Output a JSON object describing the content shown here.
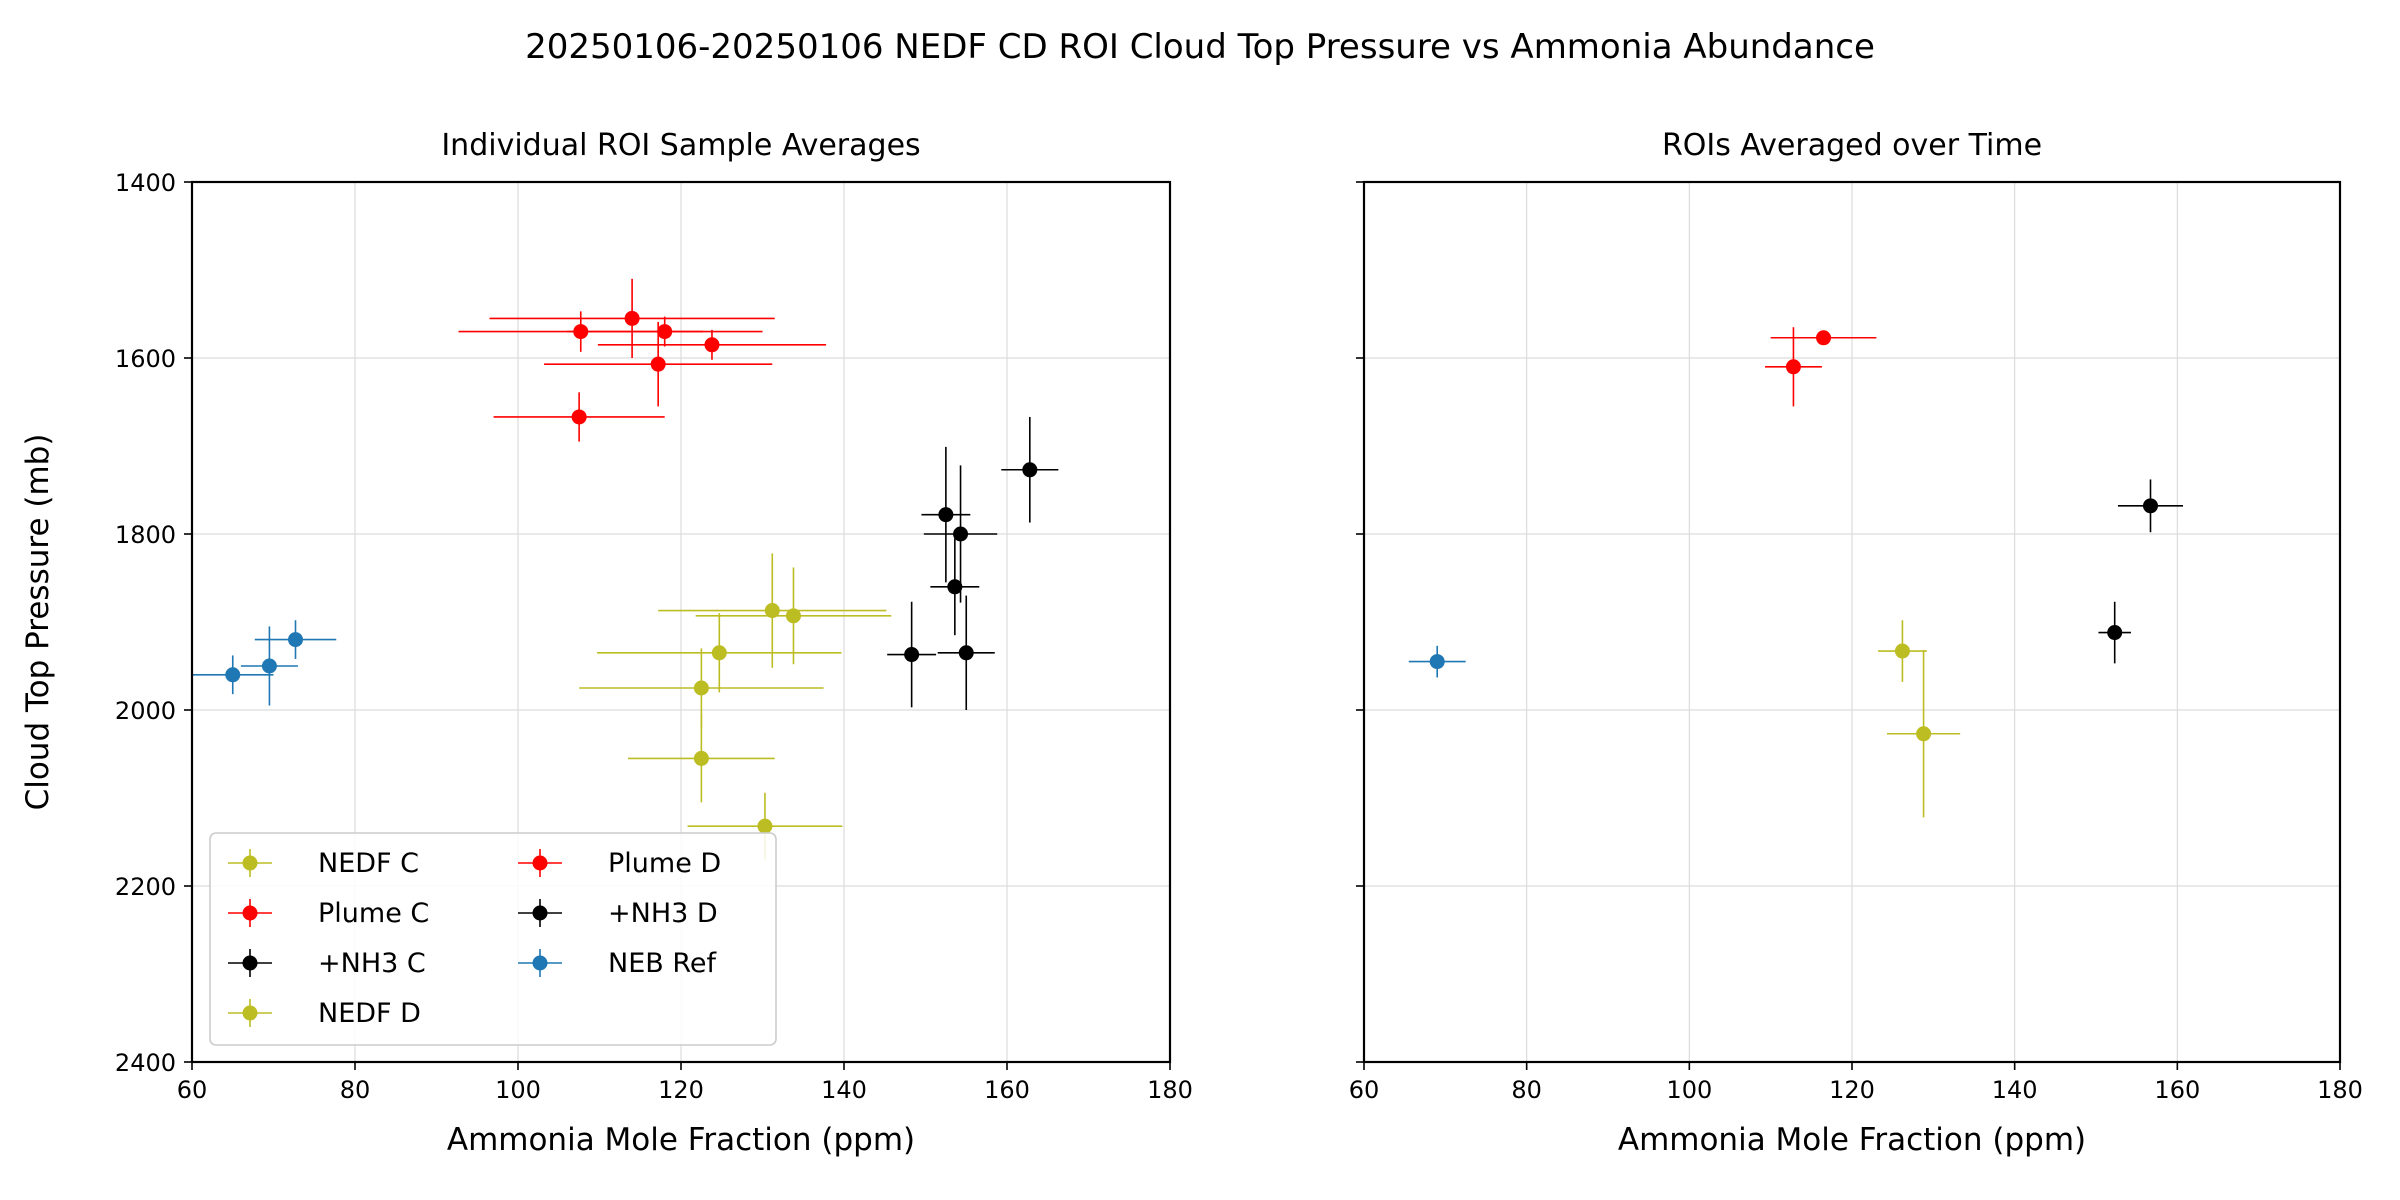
{
  "figure": {
    "title": "20250106-20250106 NEDF CD ROI Cloud Top Pressure vs Ammonia Abundance"
  },
  "chart_data": [
    {
      "type": "scatter",
      "title": "Individual ROI Sample Averages",
      "xlabel": "Ammonia Mole Fraction (ppm)",
      "ylabel": "Cloud Top Pressure (mb)",
      "xlim": [
        60,
        180
      ],
      "ylim": [
        2400,
        1400
      ],
      "y_inverted": true,
      "xticks": [
        60,
        80,
        100,
        120,
        140,
        160,
        180
      ],
      "yticks": [
        1400,
        1600,
        1800,
        2000,
        2200,
        2400
      ],
      "grid": true,
      "legend": {
        "placement": "lower-left",
        "columns": 2
      },
      "series": [
        {
          "name": "NEDF C",
          "color": "#bcbd22",
          "points": [
            {
              "x": 122.5,
              "y": 1975,
              "xerr": 15,
              "yerr": 45
            },
            {
              "x": 124.7,
              "y": 1935,
              "xerr": 15,
              "yerr": 45
            },
            {
              "x": 122.5,
              "y": 2055,
              "xerr": 9,
              "yerr": 50
            },
            {
              "x": 131.2,
              "y": 1887,
              "xerr": 14,
              "yerr": 65
            }
          ]
        },
        {
          "name": "Plume C",
          "color": "#ff0000",
          "points": [
            {
              "x": 107.7,
              "y": 1570,
              "xerr": 15,
              "yerr": 23
            },
            {
              "x": 114.0,
              "y": 1555,
              "xerr": 17.5,
              "yerr": 45
            },
            {
              "x": 107.5,
              "y": 1667,
              "xerr": 10.5,
              "yerr": 28
            }
          ]
        },
        {
          "name": "+NH3 C",
          "color": "#000000",
          "points": [
            {
              "x": 152.5,
              "y": 1778,
              "xerr": 3,
              "yerr": 77
            },
            {
              "x": 162.8,
              "y": 1727,
              "xerr": 3.5,
              "yerr": 60
            },
            {
              "x": 148.3,
              "y": 1937,
              "xerr": 3,
              "yerr": 60
            }
          ]
        },
        {
          "name": "NEDF D",
          "color": "#bcbd22",
          "points": [
            {
              "x": 133.8,
              "y": 1893,
              "xerr": 12,
              "yerr": 55
            },
            {
              "x": 130.3,
              "y": 2132,
              "xerr": 9.5,
              "yerr": 38
            }
          ]
        },
        {
          "name": "Plume D",
          "color": "#ff0000",
          "points": [
            {
              "x": 118.0,
              "y": 1570,
              "xerr": 12,
              "yerr": 17
            },
            {
              "x": 117.2,
              "y": 1607,
              "xerr": 14,
              "yerr": 48
            },
            {
              "x": 123.8,
              "y": 1585,
              "xerr": 14,
              "yerr": 17
            }
          ]
        },
        {
          "name": " +NH3 D",
          "color": "#000000",
          "points": [
            {
              "x": 154.3,
              "y": 1800,
              "xerr": 4.5,
              "yerr": 78
            },
            {
              "x": 153.6,
              "y": 1860,
              "xerr": 3,
              "yerr": 55
            },
            {
              "x": 155.0,
              "y": 1935,
              "xerr": 3.5,
              "yerr": 65
            }
          ]
        },
        {
          "name": "NEB Ref",
          "color": "#1f77b4",
          "points": [
            {
              "x": 65.0,
              "y": 1960,
              "xerr": 5,
              "yerr": 22
            },
            {
              "x": 69.5,
              "y": 1950,
              "xerr": 3.5,
              "yerr": 45
            },
            {
              "x": 72.7,
              "y": 1920,
              "xerr": 5,
              "yerr": 22
            }
          ]
        }
      ]
    },
    {
      "type": "scatter",
      "title": "ROIs Averaged over Time",
      "xlabel": "Ammonia Mole Fraction (ppm)",
      "ylabel": "",
      "xlim": [
        60,
        180
      ],
      "ylim": [
        2400,
        1400
      ],
      "y_inverted": true,
      "xticks": [
        60,
        80,
        100,
        120,
        140,
        160,
        180
      ],
      "yticks": [
        1400,
        1600,
        1800,
        2000,
        2200,
        2400
      ],
      "ytick_labels_shown": false,
      "grid": true,
      "series": [
        {
          "name": "NEDF C",
          "color": "#bcbd22",
          "points": [
            {
              "x": 126.2,
              "y": 1933,
              "xerr": 3,
              "yerr": 35
            }
          ]
        },
        {
          "name": "Plume C",
          "color": "#ff0000",
          "points": [
            {
              "x": 112.8,
              "y": 1610,
              "xerr": 3.5,
              "yerr": 45
            }
          ]
        },
        {
          "name": "+NH3 C",
          "color": "#000000",
          "points": [
            {
              "x": 152.3,
              "y": 1912,
              "xerr": 2,
              "yerr": 35
            }
          ]
        },
        {
          "name": "NEDF D",
          "color": "#bcbd22",
          "points": [
            {
              "x": 128.8,
              "y": 2027,
              "xerr": 4.5,
              "yerr": 95
            }
          ]
        },
        {
          "name": "Plume D",
          "color": "#ff0000",
          "points": [
            {
              "x": 116.5,
              "y": 1577,
              "xerr": 6.5,
              "yerr": 5
            }
          ]
        },
        {
          "name": " +NH3 D",
          "color": "#000000",
          "points": [
            {
              "x": 156.7,
              "y": 1768,
              "xerr": 4,
              "yerr": 30
            }
          ]
        },
        {
          "name": "NEB Ref",
          "color": "#1f77b4",
          "points": [
            {
              "x": 69.0,
              "y": 1945,
              "xerr": 3.5,
              "yerr": 18
            }
          ]
        }
      ]
    }
  ]
}
